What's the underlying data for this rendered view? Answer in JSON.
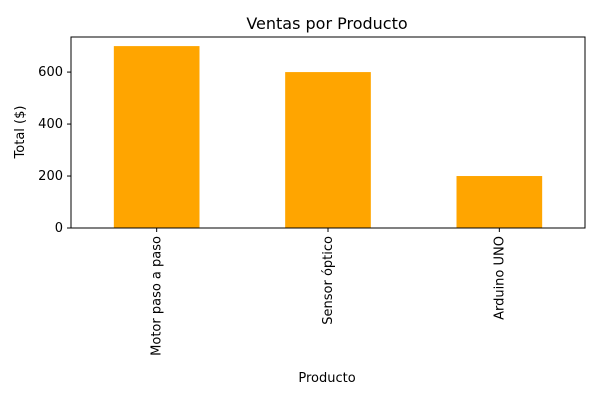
{
  "chart_data": {
    "type": "bar",
    "title": "Ventas por Producto",
    "xlabel": "Producto",
    "ylabel": "Total ($)",
    "categories": [
      "Motor paso a paso",
      "Sensor óptico",
      "Arduino UNO"
    ],
    "values": [
      700,
      600,
      200
    ],
    "y_ticks": [
      0,
      200,
      400,
      600
    ],
    "ylim": [
      0,
      735
    ],
    "grid": false,
    "bar_color": "#ffa500",
    "orientation": "vertical",
    "x_tick_rotation": "vertical"
  }
}
